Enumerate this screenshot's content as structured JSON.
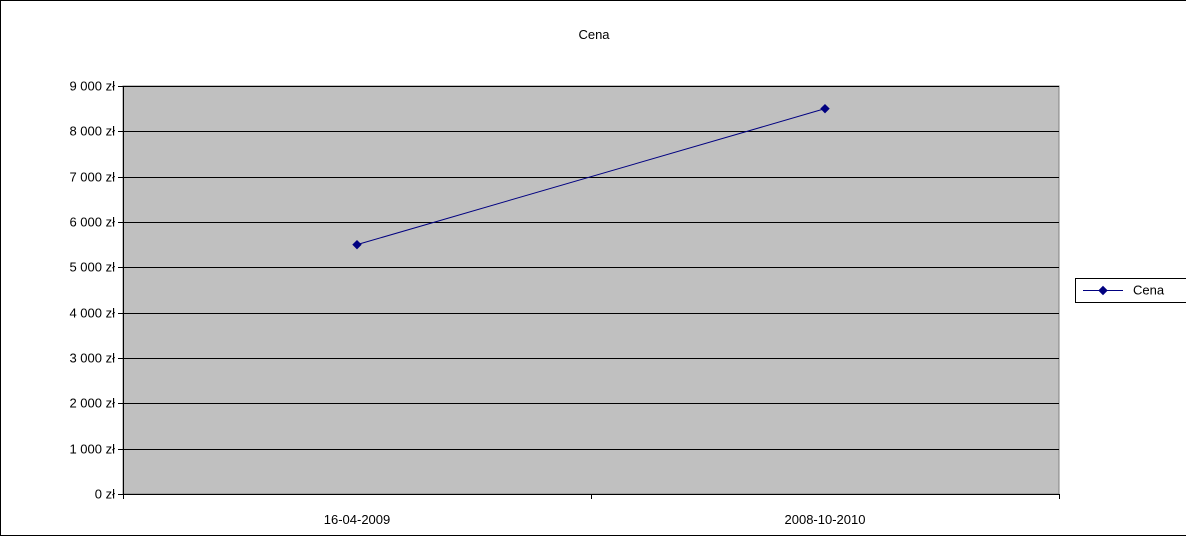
{
  "chart_data": {
    "type": "line",
    "title": "Cena",
    "xlabel": "",
    "ylabel": "",
    "categories": [
      "16-04-2009",
      "2008-10-2010"
    ],
    "series": [
      {
        "name": "Cena",
        "values": [
          5500,
          8500
        ],
        "color": "#000080",
        "marker": "diamond"
      }
    ],
    "ylim": [
      0,
      9000
    ],
    "y_ticks": [
      0,
      1000,
      2000,
      3000,
      4000,
      5000,
      6000,
      7000,
      8000,
      9000
    ],
    "y_tick_labels": [
      "0 zł",
      "1 000 zł",
      "2 000 zł",
      "3 000 zł",
      "4 000 zł",
      "5 000 zł",
      "6 000 zł",
      "7 000 zł",
      "8 000 zł",
      "9 000 zł"
    ],
    "grid": true,
    "plot_background": "#c0c0c0",
    "legend_position": "right"
  }
}
